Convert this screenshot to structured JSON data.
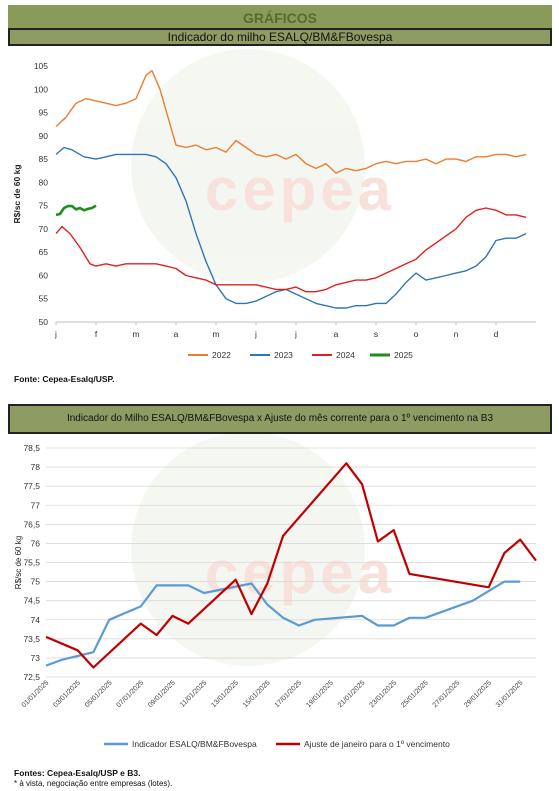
{
  "header": {
    "section_title": "GRÁFICOS"
  },
  "chart1_title": "Indicador do milho ESALQ/BM&FBovespa",
  "chart1_source": "Fonte: Cepea-Esalq/USP.",
  "chart2_title": "Indicador do Milho ESALQ/BM&FBovespa x Ajuste do mês corrente para o 1º vencimento na B3",
  "chart2_source": "Fontes: Cepea-Esalq/USP e B3.",
  "chart2_note": "* à vista, negociação entre empresas (lotes).",
  "watermark": "cepea",
  "chart_data": [
    {
      "type": "line",
      "ylabel": "R$/sc de 60 kg",
      "ylim": [
        50,
        105
      ],
      "yticks": [
        50,
        55,
        60,
        65,
        70,
        75,
        80,
        85,
        90,
        95,
        100,
        105
      ],
      "xlim": [
        0,
        12
      ],
      "month_labels": [
        "j",
        "f",
        "m",
        "a",
        "m",
        "j",
        "j",
        "a",
        "s",
        "o",
        "n",
        "d"
      ],
      "grid": false,
      "legend_position": "bottom",
      "series": [
        {
          "name": "2022",
          "color": "#ed7d31",
          "x": [
            0,
            0.25,
            0.5,
            0.75,
            1,
            1.25,
            1.5,
            1.75,
            2,
            2.25,
            2.4,
            2.6,
            2.8,
            3,
            3.25,
            3.5,
            3.75,
            4,
            4.25,
            4.5,
            4.75,
            5,
            5.25,
            5.5,
            5.75,
            6,
            6.25,
            6.5,
            6.75,
            7,
            7.25,
            7.5,
            7.75,
            8,
            8.25,
            8.5,
            8.75,
            9,
            9.25,
            9.5,
            9.75,
            10,
            10.25,
            10.5,
            10.75,
            11,
            11.25,
            11.5,
            11.75
          ],
          "y": [
            92,
            94,
            97,
            98,
            97.5,
            97,
            96.5,
            97,
            98,
            103,
            104,
            100,
            94,
            88,
            87.5,
            88,
            87,
            87.5,
            86.5,
            89,
            87.5,
            86,
            85.5,
            86,
            85,
            86,
            84,
            83,
            84,
            82,
            83,
            82.5,
            83,
            84,
            84.5,
            84,
            84.5,
            84.5,
            85,
            84,
            85,
            85,
            84.5,
            85.5,
            85.5,
            86,
            86,
            85.5,
            86
          ]
        },
        {
          "name": "2023",
          "color": "#2e75b6",
          "x": [
            0,
            0.2,
            0.4,
            0.7,
            1,
            1.25,
            1.5,
            1.75,
            2,
            2.25,
            2.5,
            2.75,
            3,
            3.25,
            3.5,
            3.75,
            4,
            4.25,
            4.5,
            4.75,
            5,
            5.25,
            5.5,
            5.75,
            6,
            6.25,
            6.5,
            6.75,
            7,
            7.25,
            7.5,
            7.75,
            8,
            8.25,
            8.5,
            8.75,
            9,
            9.25,
            9.5,
            9.75,
            10,
            10.25,
            10.5,
            10.75,
            11,
            11.25,
            11.5,
            11.75
          ],
          "y": [
            86,
            87.5,
            87,
            85.5,
            85,
            85.5,
            86,
            86,
            86,
            86,
            85.5,
            84,
            81,
            76,
            69,
            63,
            58,
            55,
            54,
            54,
            54.5,
            55.5,
            56.5,
            57,
            56,
            55,
            54,
            53.5,
            53,
            53,
            53.5,
            53.5,
            54,
            54,
            56,
            58.5,
            60.5,
            59,
            59.5,
            60,
            60.5,
            61,
            62,
            64,
            67.5,
            68,
            68,
            69
          ]
        },
        {
          "name": "2024",
          "color": "#e02020",
          "x": [
            0,
            0.15,
            0.35,
            0.6,
            0.85,
            1,
            1.25,
            1.5,
            1.75,
            2,
            2.25,
            2.5,
            2.75,
            3,
            3.25,
            3.5,
            3.75,
            4,
            4.25,
            4.5,
            4.75,
            5,
            5.25,
            5.5,
            5.75,
            6,
            6.25,
            6.5,
            6.75,
            7,
            7.25,
            7.5,
            7.75,
            8,
            8.25,
            8.5,
            8.75,
            9,
            9.25,
            9.5,
            9.75,
            10,
            10.25,
            10.5,
            10.75,
            11,
            11.25,
            11.5,
            11.75
          ],
          "y": [
            69,
            70.5,
            69,
            66,
            62.5,
            62,
            62.5,
            62,
            62.5,
            62.5,
            62.5,
            62.5,
            62,
            61.5,
            60,
            59.5,
            59,
            58,
            58,
            58,
            58,
            58,
            57.5,
            57,
            57,
            57.5,
            56.5,
            56.5,
            57,
            58,
            58.5,
            59,
            59,
            59.5,
            60.5,
            61.5,
            62.5,
            63.5,
            65.5,
            67,
            68.5,
            70,
            72.5,
            74,
            74.5,
            74,
            73,
            73,
            72.5
          ]
        },
        {
          "name": "2025",
          "color": "#1e8f1e",
          "x": [
            0,
            0.1,
            0.2,
            0.3,
            0.4,
            0.5,
            0.6,
            0.7,
            0.8,
            0.9,
            1.0
          ],
          "y": [
            73,
            73.2,
            74.5,
            74.9,
            74.9,
            74.2,
            74.5,
            74.0,
            74.3,
            74.5,
            75.0
          ]
        }
      ]
    },
    {
      "type": "line",
      "ylabel": "R$/sc de 60 kg",
      "ylim": [
        72.5,
        78.5
      ],
      "yticks": [
        "72,5",
        "73",
        "73,5",
        "74",
        "74,5",
        "75",
        "75,5",
        "76",
        "76,5",
        "77",
        "77,5",
        "78",
        "78,5"
      ],
      "categories": [
        "01/01/2025",
        "03/01/2025",
        "05/01/2025",
        "07/01/2025",
        "09/01/2025",
        "11/01/2025",
        "13/01/2025",
        "15/01/2025",
        "17/01/2025",
        "19/01/2025",
        "21/01/2025",
        "23/01/2025",
        "25/01/2025",
        "27/01/2025",
        "29/01/2025",
        "31/01/2025"
      ],
      "grid": true,
      "legend_position": "bottom",
      "series": [
        {
          "name": "Indicador ESALQ/BM&FBovespa",
          "color": "#5b9bd5",
          "x": [
            0,
            1,
            2,
            3,
            4,
            6,
            7,
            8,
            9,
            10,
            13,
            14,
            15,
            16,
            17,
            20,
            21,
            22,
            23,
            24,
            27,
            28,
            29,
            30
          ],
          "y": [
            72.8,
            72.95,
            73.05,
            73.15,
            74.0,
            74.35,
            74.9,
            74.9,
            74.9,
            74.7,
            74.95,
            74.4,
            74.05,
            73.85,
            74.0,
            74.1,
            73.85,
            73.85,
            74.05,
            74.05,
            74.5,
            74.75,
            75.0,
            75.0
          ]
        },
        {
          "name": "Ajuste de janeiro para o 1º vencimento",
          "color": "#c00000",
          "x": [
            0,
            2,
            3,
            6,
            7,
            8,
            9,
            12,
            13,
            14,
            15,
            19,
            20,
            21,
            22,
            23,
            28,
            29,
            30,
            31
          ],
          "y": [
            73.55,
            73.2,
            72.75,
            73.9,
            73.6,
            74.1,
            73.9,
            75.05,
            74.15,
            74.95,
            76.2,
            78.1,
            77.55,
            76.05,
            76.35,
            75.2,
            74.85,
            75.75,
            76.1,
            75.55
          ]
        }
      ]
    }
  ]
}
